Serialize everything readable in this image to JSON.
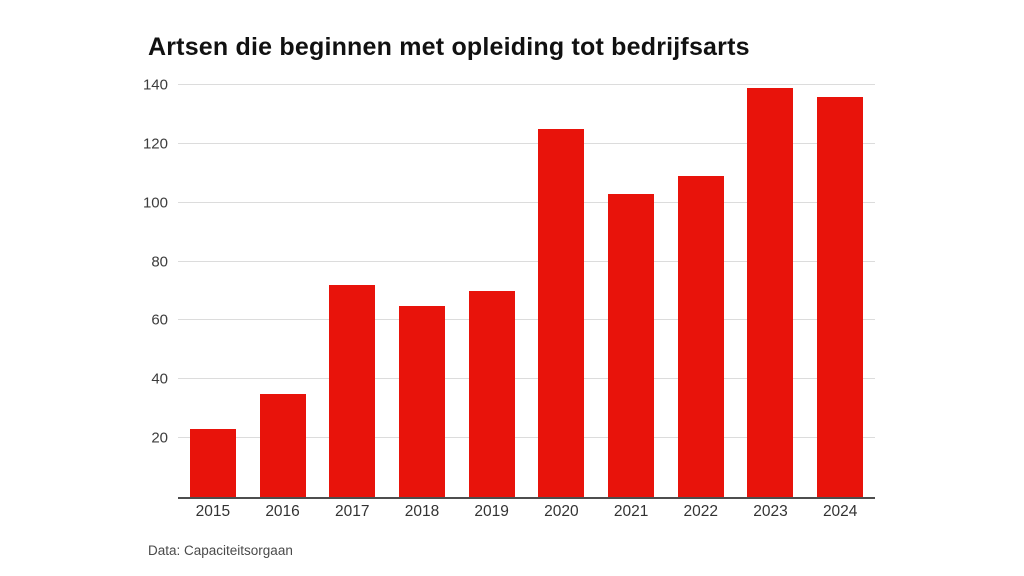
{
  "title": "Artsen die beginnen met opleiding tot bedrijfsarts",
  "source": "Data: Capaciteitsorgaan",
  "chart_data": {
    "type": "bar",
    "title": "Artsen die beginnen met opleiding tot bedrijfsarts",
    "categories": [
      "2015",
      "2016",
      "2017",
      "2018",
      "2019",
      "2020",
      "2021",
      "2022",
      "2023",
      "2024"
    ],
    "values": [
      23,
      35,
      72,
      65,
      70,
      125,
      103,
      109,
      139,
      136
    ],
    "xlabel": "",
    "ylabel": "",
    "ylim": [
      0,
      140
    ],
    "yticks": [
      20,
      40,
      60,
      80,
      100,
      120,
      140
    ],
    "grid": true,
    "legend": false,
    "bar_color": "#e8130b",
    "gridline_color": "#dcdcdc",
    "axis_color": "#4d4d4d",
    "annotation": "Data: Capaciteitsorgaan"
  }
}
